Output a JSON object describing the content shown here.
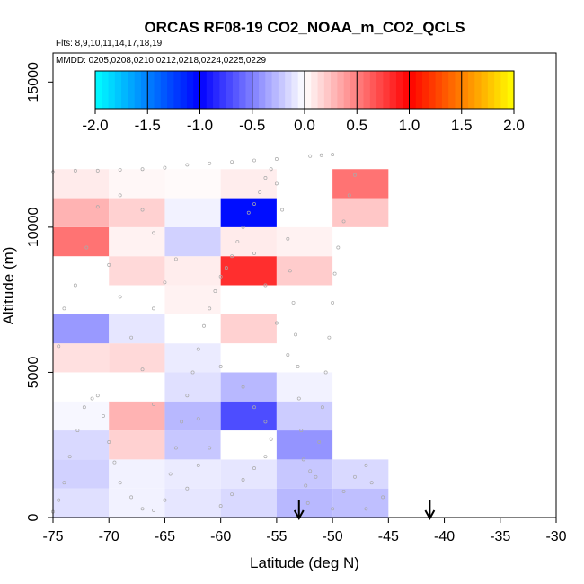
{
  "chart_data": {
    "type": "heatmap",
    "title": "ORCAS RF08-19 CO2_NOAA_m_CO2_QCLS",
    "subtitle_flights": "Flts: 8,9,10,11,14,17,18,19",
    "subtitle_dates": "MMDD: 0205,0208,0210,0212,0218,0224,0225,0229",
    "xlabel": "Latitude (deg N)",
    "ylabel": "Altitude (m)",
    "xlim": [
      -75,
      -30
    ],
    "ylim": [
      0,
      16000
    ],
    "x_ticks": [
      -75,
      -70,
      -65,
      -60,
      -55,
      -50,
      -45,
      -40,
      -35,
      -30
    ],
    "x_tick_labels": [
      "-75",
      "-70",
      "-65",
      "-60",
      "-55",
      "-50",
      "-45",
      "-40",
      "-35",
      "-30"
    ],
    "y_ticks": [
      0,
      5000,
      10000,
      15000
    ],
    "y_tick_labels": [
      "0",
      "5000",
      "10000",
      "15000"
    ],
    "colorbar": {
      "range": [
        -2.0,
        2.0
      ],
      "ticks": [
        -2.0,
        -1.5,
        -1.0,
        -0.5,
        0.0,
        0.5,
        1.0,
        1.5,
        2.0
      ],
      "tick_labels": [
        "-2.0",
        "-1.5",
        "-1.0",
        "-0.5",
        "0.0",
        "0.5",
        "1.0",
        "1.5",
        "2.0"
      ],
      "negative_colors": [
        "#00ffff",
        "#0000ff"
      ],
      "positive_colors": [
        "#ff0000",
        "#ffff00"
      ],
      "neutral_color": "#ffffff"
    },
    "bin_width_deg": 5,
    "bin_height_m": 1000,
    "cells": [
      {
        "lat": -75,
        "alt": 0,
        "value": -0.12
      },
      {
        "lat": -70,
        "alt": 0,
        "value": -0.05
      },
      {
        "lat": -65,
        "alt": 0,
        "value": -0.1
      },
      {
        "lat": -60,
        "alt": 0,
        "value": -0.15
      },
      {
        "lat": -55,
        "alt": 0,
        "value": -0.28
      },
      {
        "lat": -50,
        "alt": 0,
        "value": -0.25
      },
      {
        "lat": -75,
        "alt": 1000,
        "value": -0.18
      },
      {
        "lat": -70,
        "alt": 1000,
        "value": -0.05
      },
      {
        "lat": -65,
        "alt": 1000,
        "value": -0.08
      },
      {
        "lat": -60,
        "alt": 1000,
        "value": -0.1
      },
      {
        "lat": -55,
        "alt": 1000,
        "value": -0.22
      },
      {
        "lat": -50,
        "alt": 1000,
        "value": -0.15
      },
      {
        "lat": -75,
        "alt": 2000,
        "value": -0.15
      },
      {
        "lat": -70,
        "alt": 2000,
        "value": 0.18
      },
      {
        "lat": -65,
        "alt": 2000,
        "value": -0.22
      },
      {
        "lat": -60,
        "alt": 2000,
        "value": 0.0
      },
      {
        "lat": -55,
        "alt": 2000,
        "value": -0.42
      },
      {
        "lat": -75,
        "alt": 3000,
        "value": -0.03
      },
      {
        "lat": -70,
        "alt": 3000,
        "value": 0.3
      },
      {
        "lat": -65,
        "alt": 3000,
        "value": -0.28
      },
      {
        "lat": -60,
        "alt": 3000,
        "value": -0.7
      },
      {
        "lat": -55,
        "alt": 3000,
        "value": -0.2
      },
      {
        "lat": -75,
        "alt": 4000,
        "value": 0.0
      },
      {
        "lat": -70,
        "alt": 4000,
        "value": 0.0
      },
      {
        "lat": -65,
        "alt": 4000,
        "value": -0.12
      },
      {
        "lat": -60,
        "alt": 4000,
        "value": -0.28
      },
      {
        "lat": -55,
        "alt": 4000,
        "value": -0.05
      },
      {
        "lat": -75,
        "alt": 5000,
        "value": 0.12
      },
      {
        "lat": -70,
        "alt": 5000,
        "value": 0.15
      },
      {
        "lat": -65,
        "alt": 5000,
        "value": -0.08
      },
      {
        "lat": -60,
        "alt": 5000,
        "value": 0.0
      },
      {
        "lat": -75,
        "alt": 6000,
        "value": -0.4
      },
      {
        "lat": -70,
        "alt": 6000,
        "value": -0.1
      },
      {
        "lat": -65,
        "alt": 6000,
        "value": 0.0
      },
      {
        "lat": -60,
        "alt": 6000,
        "value": 0.18
      },
      {
        "lat": -75,
        "alt": 7000,
        "value": 0.0
      },
      {
        "lat": -70,
        "alt": 7000,
        "value": 0.0
      },
      {
        "lat": -65,
        "alt": 7000,
        "value": 0.05
      },
      {
        "lat": -60,
        "alt": 7000,
        "value": 0.0
      },
      {
        "lat": -70,
        "alt": 8000,
        "value": 0.15
      },
      {
        "lat": -65,
        "alt": 8000,
        "value": 0.07
      },
      {
        "lat": -60,
        "alt": 8000,
        "value": 0.82
      },
      {
        "lat": -55,
        "alt": 8000,
        "value": 0.2
      },
      {
        "lat": -75,
        "alt": 9000,
        "value": 0.55
      },
      {
        "lat": -70,
        "alt": 9000,
        "value": 0.05
      },
      {
        "lat": -65,
        "alt": 9000,
        "value": -0.18
      },
      {
        "lat": -60,
        "alt": 9000,
        "value": 0.08
      },
      {
        "lat": -55,
        "alt": 9000,
        "value": 0.05
      },
      {
        "lat": -75,
        "alt": 10000,
        "value": 0.3
      },
      {
        "lat": -70,
        "alt": 10000,
        "value": 0.18
      },
      {
        "lat": -65,
        "alt": 10000,
        "value": -0.05
      },
      {
        "lat": -60,
        "alt": 10000,
        "value": -1.05
      },
      {
        "lat": -50,
        "alt": 10000,
        "value": 0.22
      },
      {
        "lat": -75,
        "alt": 11000,
        "value": 0.08
      },
      {
        "lat": -70,
        "alt": 11000,
        "value": 0.03
      },
      {
        "lat": -65,
        "alt": 11000,
        "value": 0.02
      },
      {
        "lat": -60,
        "alt": 11000,
        "value": 0.07
      },
      {
        "lat": -50,
        "alt": 11000,
        "value": 0.55
      }
    ],
    "markers": [
      {
        "lat": -53,
        "type": "arrow-down"
      },
      {
        "lat": -41.3,
        "type": "arrow-down"
      }
    ],
    "flight_track": [
      [
        -75,
        200
      ],
      [
        -74.5,
        600
      ],
      [
        -74,
        1200
      ],
      [
        -73.5,
        2100
      ],
      [
        -72.8,
        3000
      ],
      [
        -72.2,
        3800
      ],
      [
        -71.5,
        4100
      ],
      [
        -71,
        4200
      ],
      [
        -70.5,
        3500
      ],
      [
        -70,
        2600
      ],
      [
        -69.5,
        1900
      ],
      [
        -69,
        1200
      ],
      [
        -68,
        700
      ],
      [
        -67,
        300
      ],
      [
        -66,
        250
      ],
      [
        -65,
        600
      ],
      [
        -64.5,
        1500
      ],
      [
        -64,
        2400
      ],
      [
        -63.5,
        3300
      ],
      [
        -63,
        4200
      ],
      [
        -62.5,
        5000
      ],
      [
        -62,
        5800
      ],
      [
        -61.5,
        6600
      ],
      [
        -61,
        7200
      ],
      [
        -60.5,
        7800
      ],
      [
        -60,
        8300
      ],
      [
        -59.5,
        8600
      ],
      [
        -59,
        9000
      ],
      [
        -58.5,
        9500
      ],
      [
        -58,
        10000
      ],
      [
        -57.5,
        10500
      ],
      [
        -57,
        10800
      ],
      [
        -56.5,
        11200
      ],
      [
        -56,
        11700
      ],
      [
        -55.5,
        12000
      ],
      [
        -55,
        11500
      ],
      [
        -54.5,
        10600
      ],
      [
        -54,
        9600
      ],
      [
        -53.8,
        8500
      ],
      [
        -53.5,
        7400
      ],
      [
        -53.3,
        6300
      ],
      [
        -53.1,
        5200
      ],
      [
        -53,
        4100
      ],
      [
        -52.8,
        3000
      ],
      [
        -52.6,
        2000
      ],
      [
        -52.4,
        1100
      ],
      [
        -52.2,
        500
      ],
      [
        -51.5,
        1400
      ],
      [
        -51.2,
        2600
      ],
      [
        -50.9,
        3800
      ],
      [
        -50.6,
        5000
      ],
      [
        -50.3,
        6200
      ],
      [
        -50,
        7400
      ],
      [
        -49.8,
        8400
      ],
      [
        -49.5,
        9300
      ],
      [
        -49,
        10200
      ],
      [
        -48.5,
        11100
      ],
      [
        -48,
        11800
      ],
      [
        -75,
        11900
      ],
      [
        -73,
        11950
      ],
      [
        -71,
        11950
      ],
      [
        -69,
        11980
      ],
      [
        -67,
        12000
      ],
      [
        -65,
        12050
      ],
      [
        -63,
        12150
      ],
      [
        -61,
        12200
      ],
      [
        -59,
        12250
      ],
      [
        -57,
        12300
      ],
      [
        -55,
        12350
      ],
      [
        -52,
        12450
      ],
      [
        -51,
        12480
      ],
      [
        -50,
        12500
      ],
      [
        -60,
        5200
      ],
      [
        -58,
        4500
      ],
      [
        -57,
        3800
      ],
      [
        -56,
        3300
      ],
      [
        -55.5,
        2700
      ],
      [
        -61,
        2400
      ],
      [
        -62,
        1800
      ],
      [
        -63,
        1000
      ],
      [
        -60,
        400
      ],
      [
        -59,
        800
      ],
      [
        -58,
        1300
      ],
      [
        -57,
        1700
      ],
      [
        -56,
        2100
      ],
      [
        -62,
        3400
      ],
      [
        -66,
        3900
      ],
      [
        -67,
        5100
      ],
      [
        -68,
        6200
      ],
      [
        -69,
        7600
      ],
      [
        -70,
        8700
      ],
      [
        -72,
        9300
      ],
      [
        -73,
        8000
      ],
      [
        -74,
        7200
      ],
      [
        -74.5,
        5900
      ],
      [
        -66,
        7200
      ],
      [
        -65,
        8100
      ],
      [
        -64,
        8900
      ],
      [
        -66,
        9800
      ],
      [
        -67,
        10600
      ],
      [
        -69,
        11100
      ],
      [
        -71,
        10700
      ],
      [
        -55,
        6700
      ],
      [
        -54,
        5600
      ],
      [
        -56,
        8000
      ],
      [
        -57,
        9100
      ],
      [
        -49,
        900
      ],
      [
        -48,
        1400
      ],
      [
        -47,
        1800
      ],
      [
        -46.5,
        1200
      ],
      [
        -45.5,
        700
      ],
      [
        -47,
        300
      ],
      [
        -50,
        300
      ],
      [
        -52,
        1600
      ]
    ]
  }
}
